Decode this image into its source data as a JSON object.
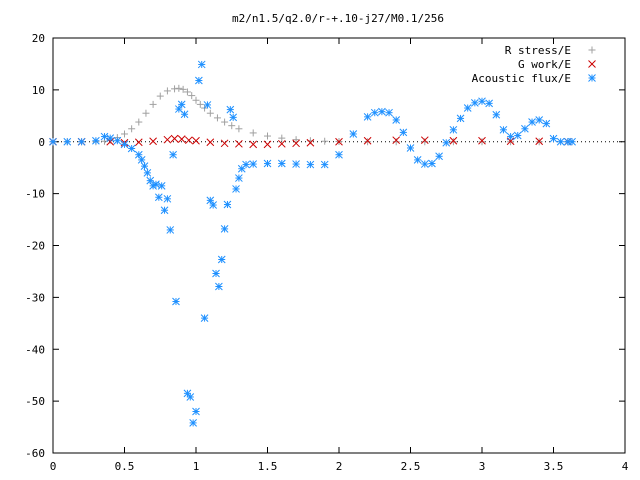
{
  "chart_data": {
    "type": "scatter",
    "title": "m2/n1.5/q2.0/r-+.10-j27/M0.1/256",
    "xlim": [
      0,
      4
    ],
    "ylim": [
      -60,
      20
    ],
    "xticks": [
      0,
      0.5,
      1,
      1.5,
      2,
      2.5,
      3,
      3.5,
      4
    ],
    "xtick_labels": [
      "0",
      "0.5",
      "1",
      "1.5",
      "2",
      "2.5",
      "3",
      "3.5",
      "4"
    ],
    "yticks": [
      -60,
      -50,
      -40,
      -30,
      -20,
      -10,
      0,
      10,
      20
    ],
    "ytick_labels": [
      "-60",
      "-50",
      "-40",
      "-30",
      "-20",
      "-10",
      "0",
      "10",
      "20"
    ],
    "grid": false,
    "legend_position": "top-right",
    "series": [
      {
        "name": "R stress/E",
        "color": "#a0a0a0",
        "marker": "plus",
        "x": [
          0.0,
          0.1,
          0.2,
          0.3,
          0.36,
          0.4,
          0.45,
          0.5,
          0.55,
          0.6,
          0.65,
          0.7,
          0.75,
          0.8,
          0.85,
          0.88,
          0.91,
          0.94,
          0.97,
          1.0,
          1.03,
          1.06,
          1.1,
          1.15,
          1.2,
          1.25,
          1.3,
          1.4,
          1.5,
          1.6,
          1.7,
          1.8,
          1.9,
          2.0,
          2.2,
          2.4,
          2.6,
          2.8,
          3.0,
          3.2,
          3.4,
          3.6
        ],
        "y": [
          0,
          0,
          0,
          0,
          0.1,
          0.3,
          0.8,
          1.5,
          2.5,
          3.8,
          5.5,
          7.2,
          8.8,
          9.8,
          10.2,
          10.3,
          10.1,
          9.6,
          8.9,
          8.0,
          7.2,
          6.5,
          5.5,
          4.6,
          3.8,
          3.1,
          2.5,
          1.7,
          1.1,
          0.7,
          0.4,
          0.2,
          0.1,
          0.05,
          0,
          0,
          0,
          0,
          0,
          0,
          0,
          0
        ]
      },
      {
        "name": "G work/E",
        "color": "#cc0000",
        "marker": "cross",
        "x": [
          0.0,
          0.2,
          0.4,
          0.5,
          0.6,
          0.7,
          0.8,
          0.85,
          0.9,
          0.95,
          1.0,
          1.1,
          1.2,
          1.3,
          1.4,
          1.5,
          1.6,
          1.7,
          1.8,
          2.0,
          2.2,
          2.4,
          2.6,
          2.8,
          3.0,
          3.2,
          3.4,
          3.6
        ],
        "y": [
          0,
          0,
          0,
          -0.2,
          -0.1,
          0.1,
          0.4,
          0.6,
          0.5,
          0.3,
          0.2,
          -0.1,
          -0.3,
          -0.4,
          -0.5,
          -0.5,
          -0.4,
          -0.3,
          -0.2,
          0,
          0.2,
          0.3,
          0.3,
          0.2,
          0.2,
          0.1,
          0.1,
          0
        ]
      },
      {
        "name": "Acoustic flux/E",
        "color": "#1e90ff",
        "marker": "star",
        "x": [
          0.0,
          0.1,
          0.2,
          0.3,
          0.36,
          0.4,
          0.45,
          0.5,
          0.55,
          0.6,
          0.62,
          0.64,
          0.66,
          0.68,
          0.7,
          0.72,
          0.74,
          0.76,
          0.78,
          0.8,
          0.82,
          0.84,
          0.86,
          0.88,
          0.9,
          0.92,
          0.94,
          0.96,
          0.98,
          1.0,
          1.02,
          1.04,
          1.06,
          1.08,
          1.1,
          1.12,
          1.14,
          1.16,
          1.18,
          1.2,
          1.22,
          1.24,
          1.26,
          1.28,
          1.3,
          1.32,
          1.35,
          1.4,
          1.5,
          1.6,
          1.7,
          1.8,
          1.9,
          2.0,
          2.1,
          2.2,
          2.25,
          2.3,
          2.35,
          2.4,
          2.45,
          2.5,
          2.55,
          2.6,
          2.65,
          2.7,
          2.75,
          2.8,
          2.85,
          2.9,
          2.95,
          3.0,
          3.05,
          3.1,
          3.15,
          3.2,
          3.25,
          3.3,
          3.35,
          3.4,
          3.45,
          3.5,
          3.55,
          3.6,
          3.63
        ],
        "y": [
          0,
          0,
          0,
          0.2,
          1.0,
          0.7,
          0.2,
          -0.5,
          -1.3,
          -2.5,
          -3.5,
          -4.7,
          -6,
          -7.5,
          -8.5,
          -8.2,
          -10.7,
          -8.5,
          -13.2,
          -11,
          -17,
          -2.5,
          -30.8,
          6.3,
          7.2,
          5.3,
          -48.5,
          -49.2,
          -54.2,
          -52,
          11.8,
          14.9,
          -34,
          7.1,
          -11.3,
          -12.2,
          -25.4,
          -27.9,
          -22.7,
          -16.8,
          -12.1,
          6.2,
          4.7,
          -9.1,
          -7,
          -5.2,
          -4.4,
          -4.3,
          -4.2,
          -4.2,
          -4.3,
          -4.4,
          -4.4,
          -2.5,
          1.5,
          4.8,
          5.6,
          5.8,
          5.6,
          4.2,
          1.8,
          -1.2,
          -3.5,
          -4.3,
          -4.2,
          -2.8,
          -0.2,
          2.3,
          4.5,
          6.5,
          7.5,
          7.8,
          7.4,
          5.2,
          2.3,
          1.0,
          1.2,
          2.5,
          3.8,
          4.2,
          3.5,
          0.6,
          0,
          0,
          0
        ]
      }
    ]
  }
}
